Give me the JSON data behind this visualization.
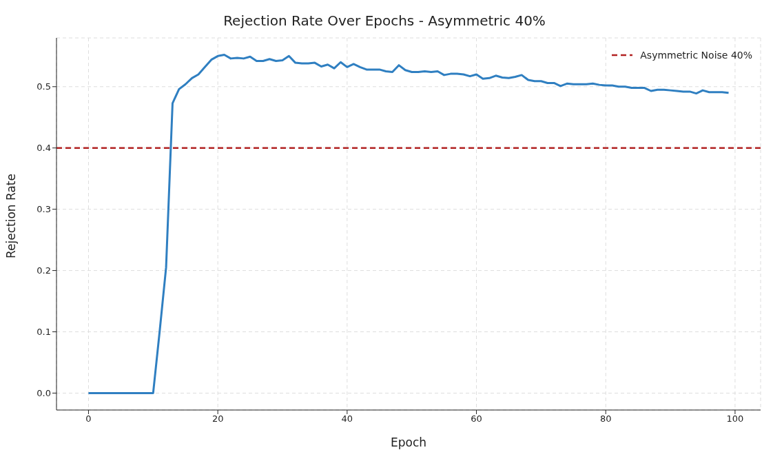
{
  "chart_data": {
    "type": "line",
    "title": "Rejection Rate Over Epochs - Asymmetric 40%",
    "xlabel": "Epoch",
    "ylabel": "Rejection Rate",
    "x": [
      0,
      1,
      2,
      3,
      4,
      5,
      6,
      7,
      8,
      9,
      10,
      11,
      12,
      13,
      14,
      15,
      16,
      17,
      18,
      19,
      20,
      21,
      22,
      23,
      24,
      25,
      26,
      27,
      28,
      29,
      30,
      31,
      32,
      33,
      34,
      35,
      36,
      37,
      38,
      39,
      40,
      41,
      42,
      43,
      44,
      45,
      46,
      47,
      48,
      49,
      50,
      51,
      52,
      53,
      54,
      55,
      56,
      57,
      58,
      59,
      60,
      61,
      62,
      63,
      64,
      65,
      66,
      67,
      68,
      69,
      70,
      71,
      72,
      73,
      74,
      75,
      76,
      77,
      78,
      79,
      80,
      81,
      82,
      83,
      84,
      85,
      86,
      87,
      88,
      89,
      90,
      91,
      92,
      93,
      94,
      95,
      96,
      97,
      98,
      99
    ],
    "series": [
      {
        "color": "#2f7fc1",
        "values": [
          0,
          0,
          0,
          0,
          0,
          0,
          0,
          0,
          0,
          0,
          0,
          0.1,
          0.205,
          0.473,
          0.496,
          0.504,
          0.514,
          0.52,
          0.532,
          0.544,
          0.55,
          0.552,
          0.546,
          0.547,
          0.546,
          0.549,
          0.542,
          0.542,
          0.545,
          0.542,
          0.543,
          0.55,
          0.539,
          0.538,
          0.538,
          0.539,
          0.533,
          0.536,
          0.53,
          0.54,
          0.532,
          0.537,
          0.532,
          0.528,
          0.528,
          0.528,
          0.525,
          0.524,
          0.535,
          0.527,
          0.524,
          0.524,
          0.525,
          0.524,
          0.525,
          0.519,
          0.521,
          0.521,
          0.52,
          0.517,
          0.52,
          0.513,
          0.514,
          0.518,
          0.515,
          0.514,
          0.516,
          0.519,
          0.511,
          0.509,
          0.509,
          0.506,
          0.506,
          0.501,
          0.505,
          0.504,
          0.504,
          0.504,
          0.505,
          0.503,
          0.502,
          0.502,
          0.5,
          0.5,
          0.498,
          0.498,
          0.498,
          0.493,
          0.495,
          0.495,
          0.494,
          0.493,
          0.492,
          0.492,
          0.489,
          0.494,
          0.491,
          0.491,
          0.491,
          0.49
        ]
      }
    ],
    "ref_lines": [
      {
        "axis": "y",
        "value": 0.4,
        "label": "Asymmetric Noise 40%",
        "color": "#b22222",
        "line_style": "dashed"
      }
    ],
    "xlim": [
      -4.95,
      103.95
    ],
    "xticks": [
      0,
      20,
      40,
      60,
      80,
      100
    ],
    "ylim": [
      -0.0276,
      0.5796
    ],
    "yticks": [
      {
        "value": 0,
        "label": "0.0"
      },
      0.1,
      0.2,
      0.3,
      0.4,
      0.5
    ],
    "grid": true,
    "legend": "top right",
    "marker": "none",
    "line_style": "solid"
  }
}
